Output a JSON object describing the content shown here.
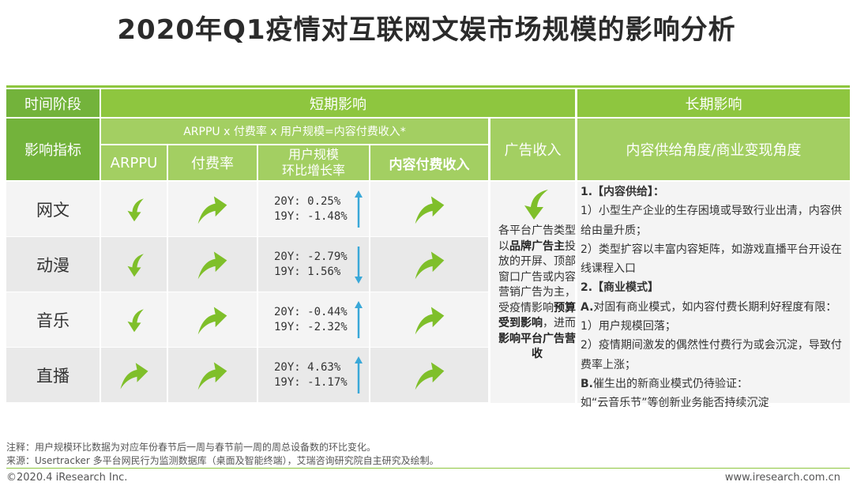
{
  "title": "2020年Q1疫情对互联网文娱市场规模的影响分析",
  "header": {
    "time_stage": "时间阶段",
    "short_term": "短期影响",
    "long_term": "长期影响",
    "indicator": "影响指标",
    "formula": "ARPPU x 付费率 x 用户规模=内容付费收入*",
    "col_arppu": "ARPPU",
    "col_pay_rate": "付费率",
    "col_user_scale_1": "用户规模",
    "col_user_scale_2": "环比增长率",
    "col_content_revenue": "内容付费收入",
    "col_ad_revenue": "广告收入",
    "col_long_angle": "内容供给角度/商业变现角度"
  },
  "rows": [
    {
      "label": "网文",
      "arppu": "down",
      "pay_rate": "up",
      "g20": "20Y:  0.25%",
      "g19": "19Y:  -1.48%",
      "trend": "up",
      "revenue": "up"
    },
    {
      "label": "动漫",
      "arppu": "down",
      "pay_rate": "up",
      "g20": "20Y:  -2.79%",
      "g19": "19Y:  1.56%",
      "trend": "down",
      "revenue": "up"
    },
    {
      "label": "音乐",
      "arppu": "down",
      "pay_rate": "up",
      "g20": "20Y:  -0.44%",
      "g19": "19Y:  -2.32%",
      "trend": "up",
      "revenue": "up"
    },
    {
      "label": "直播",
      "arppu": "up",
      "pay_rate": "up",
      "g20": "20Y:  4.63%",
      "g19": "19Y:  -1.17%",
      "trend": "up",
      "revenue": "up"
    }
  ],
  "ad": {
    "arrow": "down",
    "t1": "各平台广告类型以",
    "t2": "品牌广告主",
    "t3": "投放的开屏、顶部窗口广告或内容营销广告为主，受疫情影响",
    "t4": "预算受到影响",
    "t5": "，进而",
    "t6": "影响平台广告营收"
  },
  "long_term": {
    "h1": "1.【内容供给】：",
    "p1": "1）小型生产企业的生存困境或导致行业出清，内容供给由量升质；",
    "p2": "2）类型扩容以丰富内容矩阵，如游戏直播平台开设在线课程入口",
    "h2": "2.【商业模式】",
    "h2a_prefix": "A.",
    "h2a": "对固有商业模式，如内容付费长期利好程度有限：",
    "p3": "1）用户规模回落；",
    "p4": "2）疫情期间激发的偶然性付费行为或会沉淀，导致付费率上涨；",
    "h2b_prefix": "B.",
    "h2b": "催生出的新商业模式仍待验证：",
    "p5": "如“云音乐节”等创新业务能否持续沉淀"
  },
  "footnote": "注释：用户规模环比数据为对应年份春节后一周与春节前一周的周总设备数的环比变化。",
  "source": "来源：Usertracker 多平台网民行为监测数据库（桌面及智能终端），艾瑞咨询研究院自主研究及绘制。",
  "copyright": "©2020.4 iResearch Inc.",
  "website": "www.iresearch.com.cn",
  "colors": {
    "header_green": "#8ec63f",
    "arrow_green": "#7fbf2a",
    "trend_blue": "#3aa8d8"
  }
}
